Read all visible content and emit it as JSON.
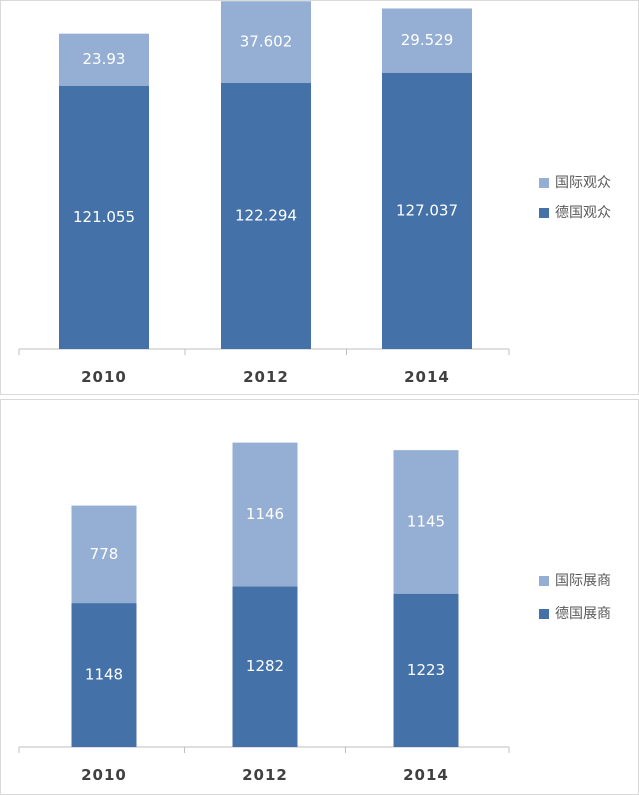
{
  "chart_data": [
    {
      "type": "bar",
      "stacked": true,
      "categories": [
        "2010",
        "2012",
        "2014"
      ],
      "series": [
        {
          "name": "德国观众",
          "values": [
            121.055,
            122.294,
            127.037
          ],
          "color": "#4472a8",
          "label_text": [
            "121.055",
            "122.294",
            "127.037"
          ]
        },
        {
          "name": "国际观众",
          "values": [
            23.93,
            37.602,
            29.529
          ],
          "color": "#95aed3",
          "label_text": [
            "23.93",
            "37.602",
            "29.529"
          ]
        }
      ],
      "ylim": [
        0,
        160
      ],
      "legend": "right",
      "grid": false
    },
    {
      "type": "bar",
      "stacked": true,
      "categories": [
        "2010",
        "2012",
        "2014"
      ],
      "series": [
        {
          "name": "德国展商",
          "values": [
            1148,
            1282,
            1223
          ],
          "color": "#4472a8",
          "label_text": [
            "1148",
            "1282",
            "1223"
          ]
        },
        {
          "name": "国际展商",
          "values": [
            778,
            1146,
            1145
          ],
          "color": "#95aed3",
          "label_text": [
            "778",
            "1146",
            "1145"
          ]
        }
      ],
      "ylim": [
        0,
        2760
      ],
      "legend": "right",
      "grid": false
    }
  ]
}
